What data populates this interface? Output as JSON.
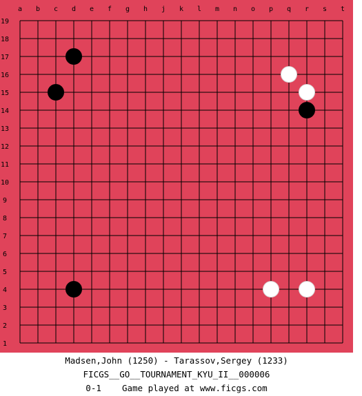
{
  "board": {
    "size": 19,
    "board_color": "#e0435a",
    "line_color": "#000000",
    "column_labels": [
      "a",
      "b",
      "c",
      "d",
      "e",
      "f",
      "g",
      "h",
      "j",
      "k",
      "l",
      "m",
      "n",
      "o",
      "p",
      "q",
      "r",
      "s",
      "t"
    ],
    "row_labels": [
      "19",
      "18",
      "17",
      "16",
      "15",
      "14",
      "13",
      "12",
      "11",
      "10",
      "9",
      "8",
      "7",
      "6",
      "5",
      "4",
      "3",
      "2",
      "1"
    ],
    "stones": [
      {
        "color": "black",
        "point": "d17",
        "col": 3,
        "row": 17
      },
      {
        "color": "black",
        "point": "c15",
        "col": 2,
        "row": 15
      },
      {
        "color": "white",
        "point": "q16",
        "col": 15,
        "row": 16
      },
      {
        "color": "white",
        "point": "r15",
        "col": 16,
        "row": 15
      },
      {
        "color": "black",
        "point": "r14",
        "col": 16,
        "row": 14
      },
      {
        "color": "black",
        "point": "d4",
        "col": 3,
        "row": 4
      },
      {
        "color": "white",
        "point": "p4",
        "col": 14,
        "row": 4
      },
      {
        "color": "white",
        "point": "r4",
        "col": 16,
        "row": 4
      }
    ]
  },
  "caption": {
    "players": "Madsen,John (1250) - Tarassov,Sergey (1233)",
    "tournament": "FICGS__GO__TOURNAMENT_KYU_II__000006",
    "result": "0-1    Game played at www.ficgs.com"
  }
}
